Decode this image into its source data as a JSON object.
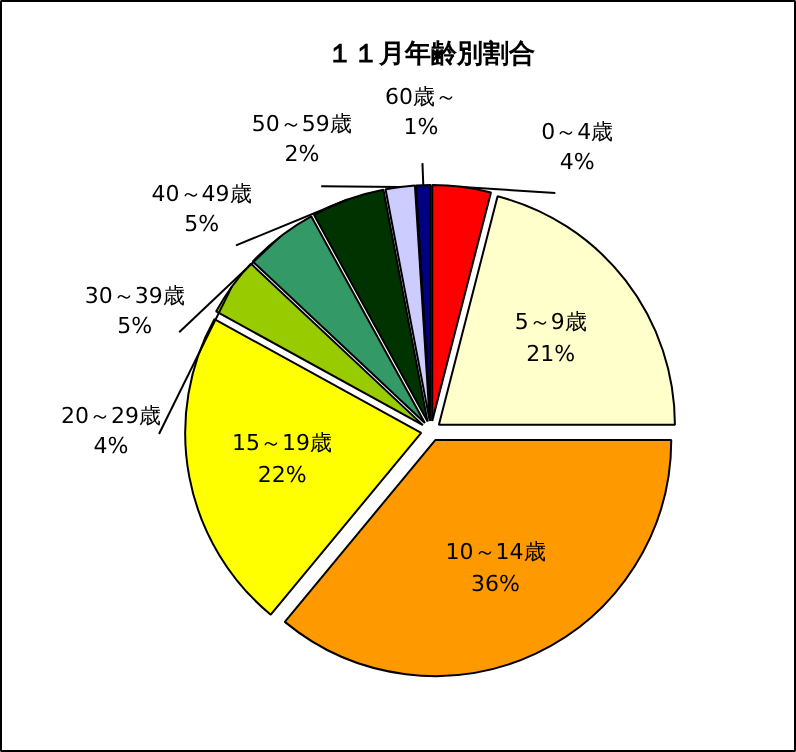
{
  "chart_data": {
    "type": "pie",
    "title": "１１月年齢別割合",
    "categories": [
      "0～4歳",
      "5～9歳",
      "10～14歳",
      "15～19歳",
      "20～29歳",
      "30～39歳",
      "40～49歳",
      "50～59歳",
      "60歳～"
    ],
    "values": [
      4,
      21,
      36,
      22,
      4,
      5,
      5,
      2,
      1
    ],
    "value_labels": [
      "4%",
      "21%",
      "36%",
      "22%",
      "4%",
      "5%",
      "5%",
      "2%",
      "1%"
    ],
    "colors": [
      "#ff0000",
      "#ffffcc",
      "#ff9900",
      "#ffff00",
      "#99cc00",
      "#339966",
      "#003300",
      "#ccccff",
      "#000080"
    ]
  }
}
